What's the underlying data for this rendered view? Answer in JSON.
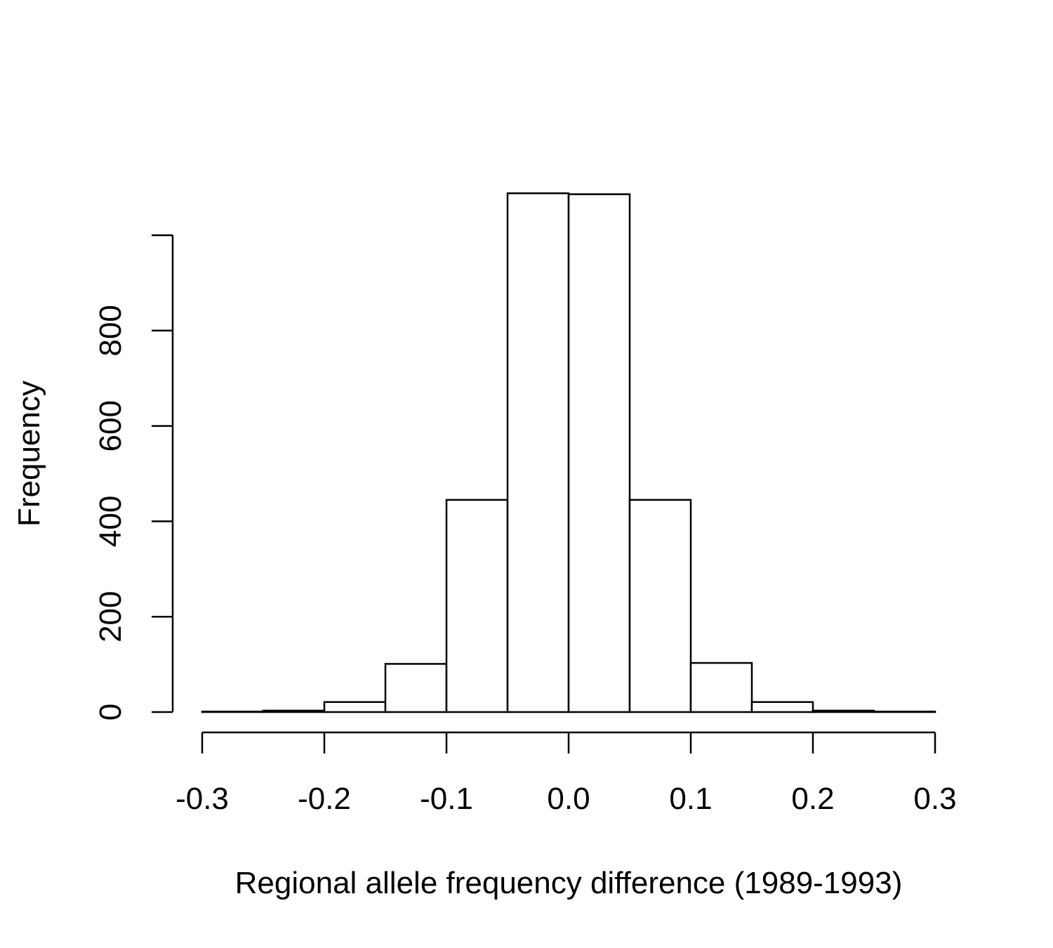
{
  "chart_data": {
    "type": "bar",
    "subtype": "histogram",
    "title": "",
    "xlabel": "Regional allele frequency difference (1989-1993)",
    "ylabel": "Frequency",
    "xlim": [
      -0.3,
      0.3
    ],
    "ylim": [
      0,
      1000
    ],
    "xticks": [
      -0.3,
      -0.2,
      -0.1,
      0.0,
      0.1,
      0.2,
      0.3
    ],
    "xtick_labels": [
      "-0.3",
      "-0.2",
      "-0.1",
      "0.0",
      "0.1",
      "0.2",
      "0.3"
    ],
    "yticks": [
      0,
      200,
      400,
      600,
      800,
      1000
    ],
    "ytick_labels": [
      "0",
      "200",
      "400",
      "600",
      "800",
      ""
    ],
    "bins": [
      {
        "x0": -0.3,
        "x1": -0.25,
        "count": 1
      },
      {
        "x0": -0.25,
        "x1": -0.2,
        "count": 3
      },
      {
        "x0": -0.2,
        "x1": -0.15,
        "count": 21
      },
      {
        "x0": -0.15,
        "x1": -0.1,
        "count": 101
      },
      {
        "x0": -0.1,
        "x1": -0.05,
        "count": 445
      },
      {
        "x0": -0.05,
        "x1": 0.0,
        "count": 1088
      },
      {
        "x0": 0.0,
        "x1": 0.05,
        "count": 1086
      },
      {
        "x0": 0.05,
        "x1": 0.1,
        "count": 445
      },
      {
        "x0": 0.1,
        "x1": 0.15,
        "count": 103
      },
      {
        "x0": 0.15,
        "x1": 0.2,
        "count": 21
      },
      {
        "x0": 0.2,
        "x1": 0.25,
        "count": 3
      },
      {
        "x0": 0.25,
        "x1": 0.3,
        "count": 1
      }
    ],
    "grid": false,
    "colors": {
      "bar_fill": "#ffffff",
      "bar_stroke": "#000000"
    }
  }
}
